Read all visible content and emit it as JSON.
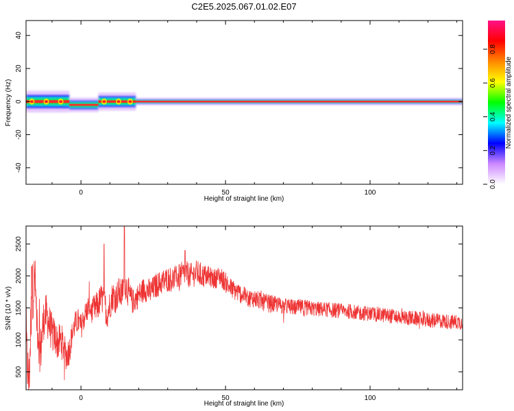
{
  "figure": {
    "title": "C2E5.2025.067.01.02.E07"
  },
  "colors": {
    "snr_line": "#ee3333",
    "spectrogram_background": "#ffffff"
  },
  "chart_data": [
    {
      "type": "heatmap",
      "name": "spectrogram",
      "xlabel": "Height of straight line (km)",
      "ylabel": "Frequency (Hz)",
      "xlim": [
        -19,
        132
      ],
      "ylim": [
        -50,
        49
      ],
      "x_ticks": [
        0,
        50,
        100
      ],
      "y_ticks": [
        -40,
        -20,
        0,
        20,
        40
      ],
      "band": {
        "center_frequency_hz": 0,
        "segments": [
          {
            "x_start": -19,
            "x_end": -4,
            "color": "red-green",
            "spread_hz": 3
          },
          {
            "x_start": -4,
            "x_end": 6,
            "color": "red",
            "spread_hz": 2,
            "offset_hz": -2
          },
          {
            "x_start": 6,
            "x_end": 19,
            "color": "red-green",
            "spread_hz": 2.5
          },
          {
            "x_start": 19,
            "x_end": 132,
            "color": "red",
            "spread_hz": 1
          }
        ]
      },
      "colorbar": {
        "label": "Normalized spectral amplitude",
        "range": [
          0,
          1
        ],
        "ticks": [
          "0.0",
          "0.2",
          "0.4",
          "0.6",
          "0.8"
        ],
        "stops": [
          "#ffffff",
          "#cc88ff",
          "#0000ff",
          "#00ffff",
          "#00ff00",
          "#ffff00",
          "#ff8800",
          "#ff0000",
          "#ff1188"
        ]
      }
    },
    {
      "type": "line",
      "name": "snr",
      "xlabel": "Height of straight line (km)",
      "ylabel": "SNR (10 * v/v)",
      "xlim": [
        -19,
        132
      ],
      "ylim": [
        220,
        2780
      ],
      "x_ticks": [
        0,
        50,
        100
      ],
      "y_ticks": [
        500,
        1000,
        1500,
        2000,
        2500
      ],
      "series": [
        {
          "x": [
            -19,
            -18,
            -17,
            -16,
            -15,
            -14,
            -13,
            -12,
            -11,
            -10,
            -9,
            -8,
            -7,
            -6,
            -5,
            -4,
            -3,
            -2,
            -1,
            0,
            1,
            2,
            3,
            4,
            5,
            6,
            7,
            8,
            9,
            10,
            11,
            12,
            13,
            14,
            15,
            16,
            17,
            18,
            20,
            22,
            24,
            26,
            28,
            30,
            32,
            34,
            36,
            38,
            40,
            42,
            44,
            46,
            48,
            50,
            52,
            54,
            56,
            58,
            60,
            62,
            64,
            66,
            68,
            70,
            72,
            74,
            76,
            78,
            80,
            82,
            84,
            86,
            88,
            90,
            92,
            94,
            96,
            98,
            100,
            102,
            104,
            106,
            108,
            110,
            112,
            114,
            116,
            118,
            120,
            122,
            124,
            126,
            128,
            130,
            132
          ],
          "y": [
            900,
            300,
            1700,
            1950,
            1200,
            800,
            1300,
            1400,
            1250,
            1100,
            1050,
            950,
            1000,
            900,
            750,
            850,
            1100,
            1250,
            1300,
            1200,
            1350,
            1450,
            1550,
            1400,
            1500,
            1550,
            1650,
            1600,
            1400,
            1550,
            1700,
            1650,
            1750,
            1700,
            1900,
            1800,
            1650,
            1600,
            1700,
            1800,
            1750,
            1850,
            1900,
            1950,
            1950,
            2000,
            2050,
            2000,
            2050,
            2000,
            2000,
            1950,
            2000,
            1900,
            1800,
            1750,
            1700,
            1650,
            1650,
            1600,
            1580,
            1560,
            1550,
            1530,
            1520,
            1500,
            1510,
            1500,
            1490,
            1480,
            1480,
            1470,
            1460,
            1450,
            1450,
            1440,
            1420,
            1420,
            1410,
            1400,
            1390,
            1380,
            1370,
            1360,
            1350,
            1340,
            1330,
            1320,
            1310,
            1300,
            1300,
            1290,
            1280,
            1280,
            1270
          ],
          "noise_amplitude": [
            600,
            600,
            600,
            600,
            500,
            500,
            400,
            400,
            400,
            400,
            350,
            350,
            350,
            350,
            300,
            300,
            250,
            250,
            250,
            250,
            250,
            250,
            250,
            300,
            300,
            300,
            300,
            300,
            300,
            300,
            300,
            300,
            300,
            300,
            300,
            300,
            300,
            250,
            250,
            250,
            250,
            250,
            250,
            250,
            250,
            250,
            250,
            250,
            250,
            250,
            200,
            200,
            200,
            200,
            200,
            200,
            180,
            180,
            180,
            180,
            180,
            180,
            160,
            160,
            160,
            160,
            160,
            160,
            150,
            150,
            150,
            150,
            150,
            150,
            150,
            150,
            150,
            150,
            150,
            150,
            150,
            150,
            150,
            150,
            150,
            150,
            150,
            150,
            150,
            150,
            150,
            150,
            150,
            150,
            150
          ],
          "peaks": [
            {
              "x": 15,
              "y": 2780
            },
            {
              "x": 8,
              "y": 2500
            },
            {
              "x": -17,
              "y": 2150
            },
            {
              "x": 36,
              "y": 2400
            }
          ]
        }
      ]
    }
  ]
}
